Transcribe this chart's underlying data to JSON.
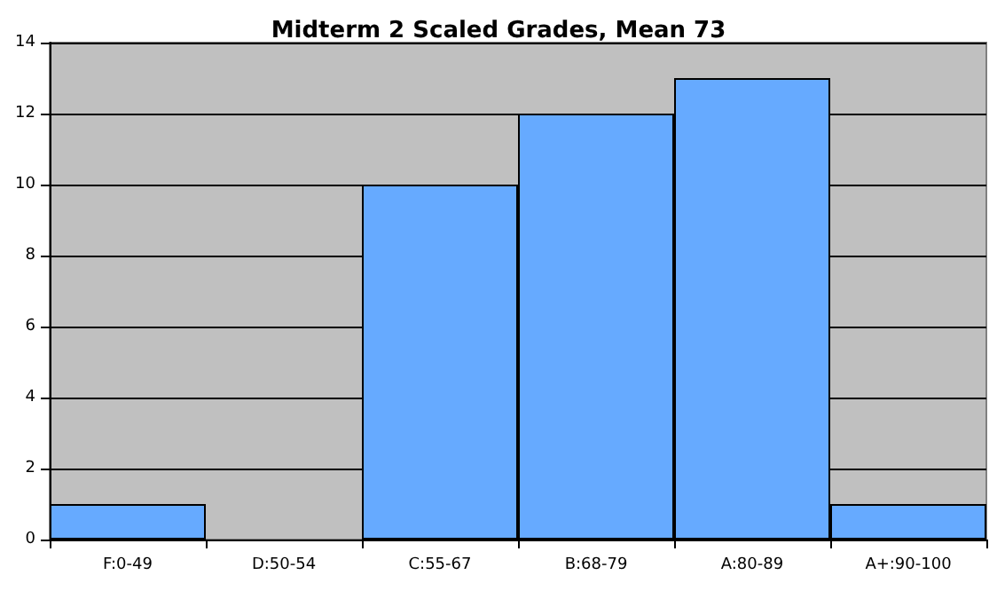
{
  "chart_data": {
    "type": "bar",
    "title": "Midterm 2 Scaled Grades, Mean 73",
    "categories": [
      "F:0-49",
      "D:50-54",
      "C:55-67",
      "B:68-79",
      "A:80-89",
      "A+:90-100"
    ],
    "values": [
      1,
      0,
      10,
      12,
      13,
      1
    ],
    "color": "#66aaff",
    "ylim": [
      0,
      14
    ],
    "yticks": [
      0,
      2,
      4,
      6,
      8,
      10,
      12,
      14
    ],
    "grid": "y"
  }
}
